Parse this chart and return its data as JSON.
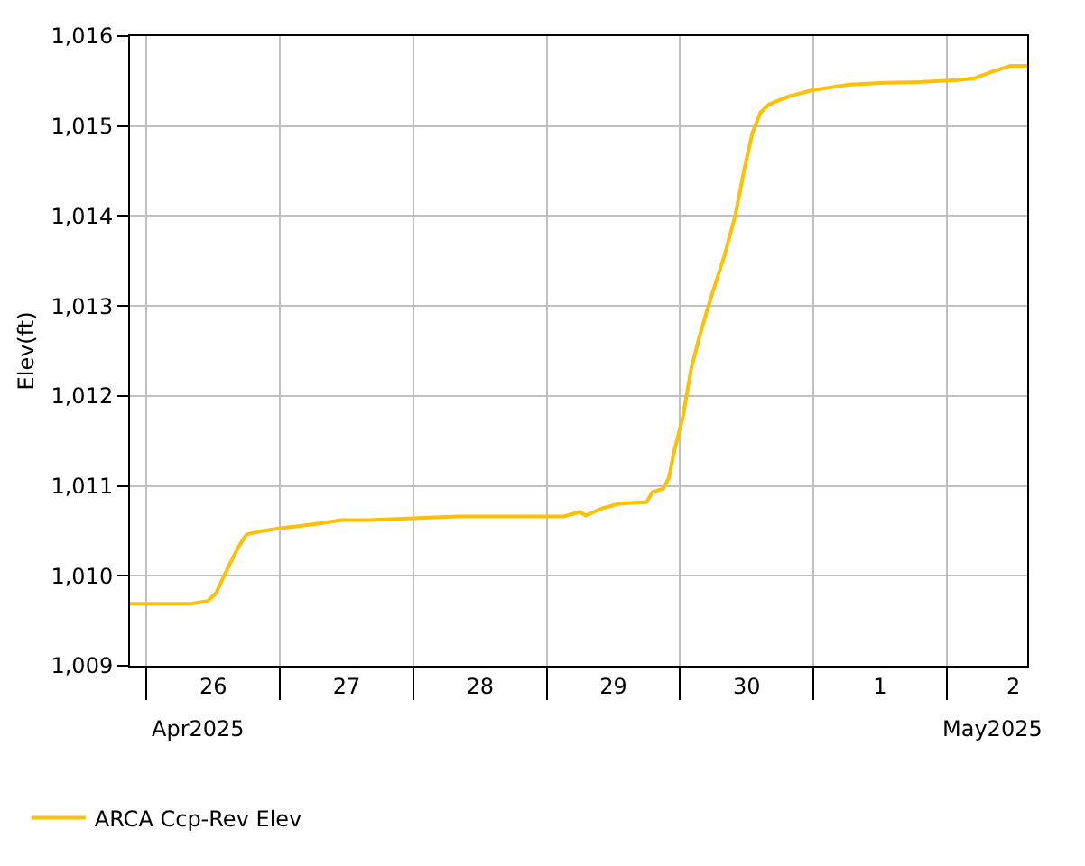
{
  "chart_data": {
    "type": "line",
    "ylabel": "Elev(ft)",
    "legend": "bottom",
    "grid": true,
    "marker": "none",
    "line_style": "solid",
    "xlim": [
      "2025-04-25T21:00",
      "2025-05-02T14:30"
    ],
    "ylim": [
      1009,
      1016
    ],
    "yticks": [
      {
        "value": 1009,
        "label": "1,009"
      },
      {
        "value": 1010,
        "label": "1,010"
      },
      {
        "value": 1011,
        "label": "1,011"
      },
      {
        "value": 1012,
        "label": "1,012"
      },
      {
        "value": 1013,
        "label": "1,013"
      },
      {
        "value": 1014,
        "label": "1,014"
      },
      {
        "value": 1015,
        "label": "1,015"
      },
      {
        "value": 1016,
        "label": "1,016"
      }
    ],
    "xticks": [
      {
        "value": "2025-04-26T00:00",
        "label": null
      },
      {
        "value": "2025-04-26T12:00",
        "label": "26"
      },
      {
        "value": "2025-04-27T00:00",
        "label": null
      },
      {
        "value": "2025-04-27T12:00",
        "label": "27"
      },
      {
        "value": "2025-04-28T00:00",
        "label": null
      },
      {
        "value": "2025-04-28T12:00",
        "label": "28"
      },
      {
        "value": "2025-04-29T00:00",
        "label": null
      },
      {
        "value": "2025-04-29T12:00",
        "label": "29"
      },
      {
        "value": "2025-04-30T00:00",
        "label": null
      },
      {
        "value": "2025-04-30T12:00",
        "label": "30"
      },
      {
        "value": "2025-05-01T00:00",
        "label": null
      },
      {
        "value": "2025-05-01T12:00",
        "label": "1"
      },
      {
        "value": "2025-05-02T00:00",
        "label": null
      },
      {
        "value": "2025-05-02T12:00",
        "label": "2"
      }
    ],
    "annotations": [
      "Apr2025",
      "May2025"
    ],
    "x": [
      "2025-04-25T21:00",
      "2025-04-26T08:00",
      "2025-04-26T09:00",
      "2025-04-26T11:00",
      "2025-04-26T12:30",
      "2025-04-26T14:00",
      "2025-04-26T16:00",
      "2025-04-26T17:00",
      "2025-04-26T18:00",
      "2025-04-26T21:00",
      "2025-04-27T00:00",
      "2025-04-27T03:00",
      "2025-04-27T08:00",
      "2025-04-27T11:00",
      "2025-04-27T16:00",
      "2025-04-28T00:00",
      "2025-04-28T08:00",
      "2025-04-28T17:30",
      "2025-04-29T00:00",
      "2025-04-29T03:00",
      "2025-04-29T06:00",
      "2025-04-29T07:00",
      "2025-04-29T10:00",
      "2025-04-29T13:00",
      "2025-04-29T18:00",
      "2025-04-29T19:00",
      "2025-04-29T21:00",
      "2025-04-29T22:00",
      "2025-04-29T23:00",
      "2025-04-30T00:30",
      "2025-04-30T02:00",
      "2025-04-30T03:30",
      "2025-04-30T05:30",
      "2025-04-30T08:00",
      "2025-04-30T10:00",
      "2025-04-30T11:30",
      "2025-04-30T13:00",
      "2025-04-30T14:30",
      "2025-04-30T16:00",
      "2025-04-30T19:30",
      "2025-05-01T00:00",
      "2025-05-01T06:30",
      "2025-05-01T13:00",
      "2025-05-01T19:30",
      "2025-05-02T02:00",
      "2025-05-02T05:00",
      "2025-05-02T08:00",
      "2025-05-02T11:30",
      "2025-05-02T14:30"
    ],
    "series": [
      {
        "name": "ARCA Ccp-Rev Elev",
        "color": "#ffc000",
        "values": [
          1009.69,
          1009.69,
          1009.7,
          1009.72,
          1009.81,
          1010.01,
          1010.26,
          1010.37,
          1010.46,
          1010.5,
          1010.53,
          1010.55,
          1010.59,
          1010.62,
          1010.62,
          1010.64,
          1010.66,
          1010.66,
          1010.66,
          1010.66,
          1010.71,
          1010.67,
          1010.75,
          1010.8,
          1010.82,
          1010.93,
          1010.97,
          1011.09,
          1011.4,
          1011.76,
          1012.3,
          1012.66,
          1013.08,
          1013.56,
          1014.02,
          1014.5,
          1014.92,
          1015.15,
          1015.24,
          1015.33,
          1015.4,
          1015.46,
          1015.48,
          1015.49,
          1015.51,
          1015.53,
          1015.6,
          1015.67,
          1015.67
        ]
      }
    ]
  }
}
